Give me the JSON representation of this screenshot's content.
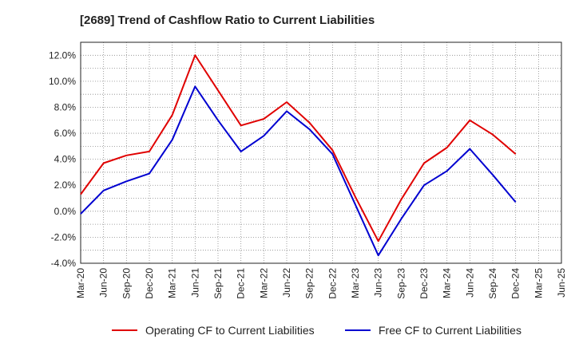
{
  "chart_data": {
    "type": "line",
    "title": "[2689]  Trend of Cashflow Ratio to Current Liabilities",
    "xlabel": "",
    "ylabel": "",
    "categories": [
      "Mar-20",
      "Jun-20",
      "Sep-20",
      "Dec-20",
      "Mar-21",
      "Jun-21",
      "Sep-21",
      "Dec-21",
      "Mar-22",
      "Jun-22",
      "Sep-22",
      "Dec-22",
      "Mar-23",
      "Jun-23",
      "Sep-23",
      "Dec-23",
      "Mar-24",
      "Jun-24",
      "Sep-24",
      "Dec-24",
      "Mar-25",
      "Jun-25"
    ],
    "ylim": [
      -4.0,
      13.0
    ],
    "yticks": [
      -4.0,
      -2.0,
      0.0,
      2.0,
      4.0,
      6.0,
      8.0,
      10.0,
      12.0
    ],
    "ytick_labels": [
      "-4.0%",
      "-2.0%",
      "0.0%",
      "2.0%",
      "4.0%",
      "6.0%",
      "8.0%",
      "10.0%",
      "12.0%"
    ],
    "grid": true,
    "legend_position": "bottom",
    "series": [
      {
        "name": "Operating CF to Current Liabilities",
        "color": "#e00000",
        "values": [
          1.3,
          3.7,
          4.3,
          4.6,
          7.4,
          12.0,
          9.3,
          6.6,
          7.1,
          8.4,
          6.8,
          4.7,
          1.1,
          -2.3,
          0.9,
          3.7,
          4.9,
          7.0,
          5.9,
          4.4,
          null,
          null
        ]
      },
      {
        "name": "Free CF to Current Liabilities",
        "color": "#0000d0",
        "values": [
          -0.2,
          1.6,
          2.3,
          2.9,
          5.5,
          9.6,
          7.0,
          4.6,
          5.8,
          7.7,
          6.3,
          4.4,
          0.5,
          -3.4,
          -0.6,
          2.0,
          3.1,
          4.8,
          2.8,
          0.7,
          null,
          null
        ]
      }
    ]
  }
}
